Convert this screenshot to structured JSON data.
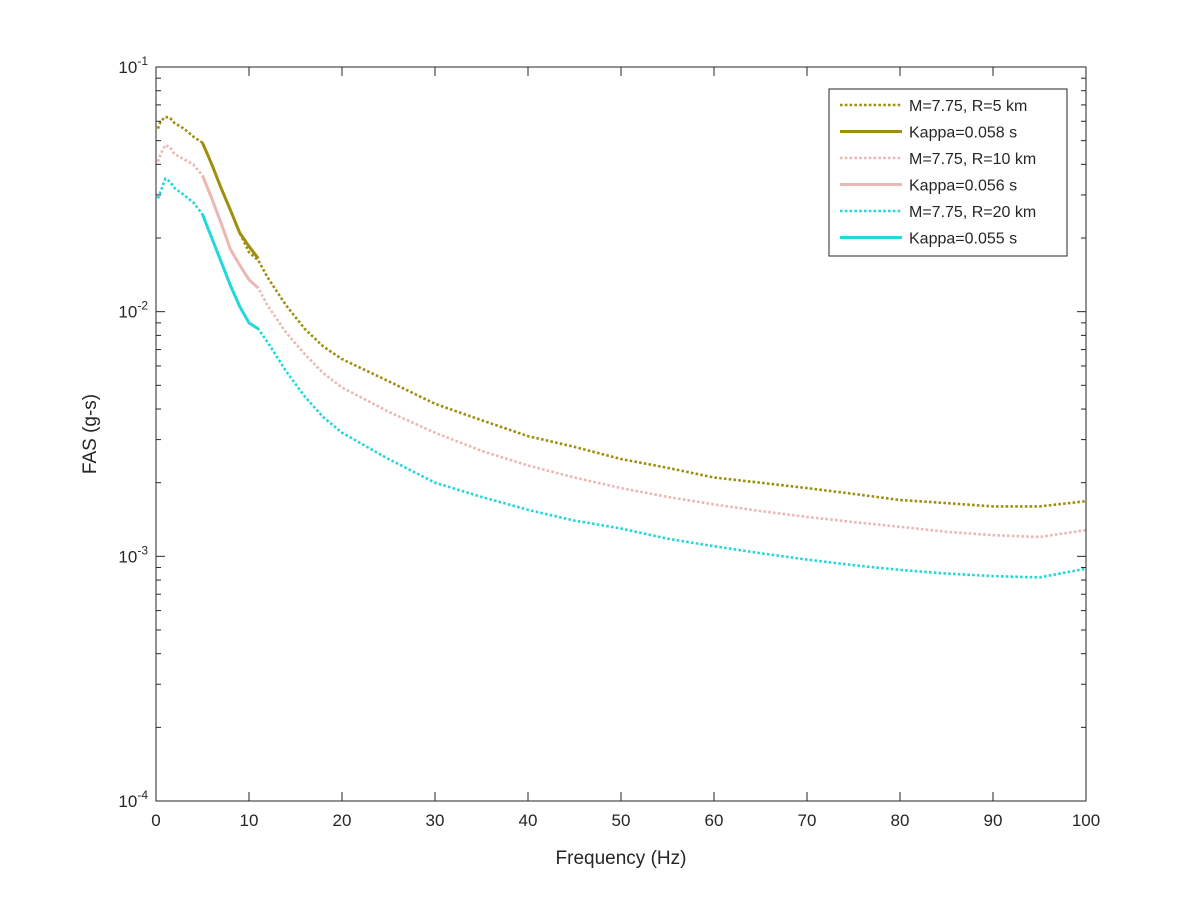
{
  "chart_data": {
    "type": "line",
    "title": "",
    "xlabel": "Frequency (Hz)",
    "ylabel": "FAS (g-s)",
    "xlim": [
      0,
      100
    ],
    "ylim": [
      0.0001,
      0.1
    ],
    "yscale": "log",
    "grid": false,
    "legend_position": "top-right",
    "x_ticks": [
      0,
      10,
      20,
      30,
      40,
      50,
      60,
      70,
      80,
      90,
      100
    ],
    "x_tick_labels": [
      "0",
      "10",
      "20",
      "30",
      "40",
      "50",
      "60",
      "70",
      "80",
      "90",
      "100"
    ],
    "y_ticks": [
      0.0001,
      0.001,
      0.01,
      0.1
    ],
    "y_tick_labels": [
      {
        "base": "10",
        "exp": "-4"
      },
      {
        "base": "10",
        "exp": "-3"
      },
      {
        "base": "10",
        "exp": "-2"
      },
      {
        "base": "10",
        "exp": "-1"
      }
    ],
    "series": [
      {
        "name": "M=7.75, R=5 km",
        "color": "#9e8f0e",
        "style": "dotted",
        "x": [
          0.2,
          0.5,
          1,
          1.5,
          2,
          3,
          4,
          5,
          6,
          7,
          8,
          9,
          10,
          11,
          12,
          14,
          16,
          18,
          20,
          25,
          30,
          35,
          40,
          45,
          50,
          55,
          60,
          65,
          70,
          75,
          80,
          85,
          90,
          95,
          100
        ],
        "y": [
          0.056,
          0.06,
          0.0625,
          0.062,
          0.059,
          0.056,
          0.052,
          0.049,
          0.04,
          0.032,
          0.026,
          0.021,
          0.0175,
          0.0162,
          0.0138,
          0.0106,
          0.0085,
          0.0072,
          0.0064,
          0.0052,
          0.0042,
          0.0036,
          0.0031,
          0.0028,
          0.0025,
          0.0023,
          0.0021,
          0.002,
          0.0019,
          0.0018,
          0.0017,
          0.00165,
          0.0016,
          0.0016,
          0.00168
        ]
      },
      {
        "name": "Kappa=0.058 s",
        "color": "#9e8f0e",
        "style": "solid",
        "x": [
          5,
          6,
          7,
          8,
          9,
          10,
          11
        ],
        "y": [
          0.049,
          0.04,
          0.032,
          0.026,
          0.021,
          0.0185,
          0.0165
        ]
      },
      {
        "name": "M=7.75, R=10 km",
        "color": "#ebb8b4",
        "style": "dotted",
        "x": [
          0.2,
          0.5,
          1,
          1.5,
          2,
          3,
          4,
          5,
          6,
          7,
          8,
          9,
          10,
          11,
          12,
          14,
          16,
          18,
          20,
          25,
          30,
          35,
          40,
          45,
          50,
          55,
          60,
          65,
          70,
          75,
          80,
          85,
          90,
          95,
          100
        ],
        "y": [
          0.041,
          0.044,
          0.048,
          0.047,
          0.044,
          0.042,
          0.04,
          0.036,
          0.029,
          0.023,
          0.018,
          0.0155,
          0.0135,
          0.0125,
          0.0106,
          0.0082,
          0.0067,
          0.0056,
          0.0049,
          0.0039,
          0.0032,
          0.0027,
          0.00235,
          0.0021,
          0.0019,
          0.00175,
          0.00163,
          0.00153,
          0.00145,
          0.00138,
          0.00132,
          0.00126,
          0.00122,
          0.0012,
          0.00128
        ]
      },
      {
        "name": "Kappa=0.056 s",
        "color": "#ebb8b4",
        "style": "solid",
        "x": [
          5,
          6,
          7,
          8,
          9,
          10,
          11
        ],
        "y": [
          0.036,
          0.029,
          0.023,
          0.018,
          0.0155,
          0.0135,
          0.0125
        ]
      },
      {
        "name": "M=7.75, R=20 km",
        "color": "#23d7dc",
        "style": "dotted",
        "x": [
          0.2,
          0.5,
          1,
          1.5,
          2,
          3,
          4,
          5,
          6,
          7,
          8,
          9,
          10,
          11,
          12,
          14,
          16,
          18,
          20,
          25,
          30,
          35,
          40,
          45,
          50,
          55,
          60,
          65,
          70,
          75,
          80,
          85,
          90,
          95,
          100
        ],
        "y": [
          0.029,
          0.031,
          0.035,
          0.034,
          0.032,
          0.03,
          0.028,
          0.025,
          0.02,
          0.016,
          0.0128,
          0.0105,
          0.009,
          0.0085,
          0.0075,
          0.0057,
          0.0045,
          0.0037,
          0.0032,
          0.0025,
          0.002,
          0.00175,
          0.00155,
          0.0014,
          0.0013,
          0.00118,
          0.0011,
          0.00103,
          0.00097,
          0.00092,
          0.00088,
          0.00085,
          0.00083,
          0.00082,
          0.00089
        ]
      },
      {
        "name": "Kappa=0.055 s",
        "color": "#23d7dc",
        "style": "solid",
        "x": [
          5,
          6,
          7,
          8,
          9,
          10,
          11
        ],
        "y": [
          0.025,
          0.02,
          0.016,
          0.0128,
          0.0105,
          0.009,
          0.0085
        ]
      }
    ]
  }
}
